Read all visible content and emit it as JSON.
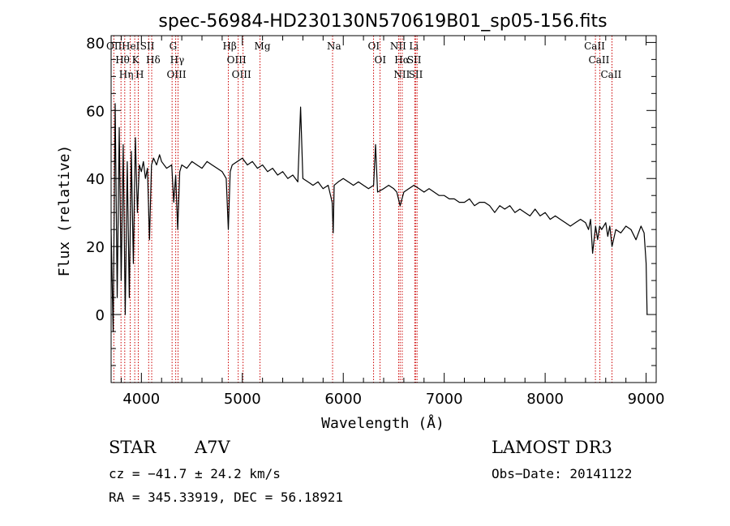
{
  "chart_data": {
    "type": "line",
    "title": "spec-56984-HD230130N570619B01_sp05-156.fits",
    "xlabel": "Wavelength (Å)",
    "ylabel": "Flux (relative)",
    "xlim": [
      3700,
      9100
    ],
    "ylim": [
      -20,
      82
    ],
    "xticks": [
      4000,
      5000,
      6000,
      7000,
      8000,
      9000
    ],
    "yticks": [
      0,
      20,
      40,
      60,
      80
    ],
    "grid": false,
    "series": [
      {
        "name": "spectrum",
        "x": [
          3700,
          3720,
          3740,
          3760,
          3780,
          3800,
          3820,
          3840,
          3860,
          3880,
          3900,
          3920,
          3940,
          3960,
          3980,
          4000,
          4020,
          4040,
          4060,
          4080,
          4100,
          4120,
          4150,
          4180,
          4200,
          4250,
          4300,
          4320,
          4340,
          4360,
          4380,
          4400,
          4450,
          4500,
          4550,
          4600,
          4650,
          4700,
          4750,
          4800,
          4840,
          4861,
          4880,
          4900,
          4950,
          5000,
          5050,
          5100,
          5150,
          5200,
          5250,
          5300,
          5350,
          5400,
          5450,
          5500,
          5550,
          5577,
          5600,
          5650,
          5700,
          5750,
          5800,
          5850,
          5890,
          5900,
          5910,
          5950,
          6000,
          6050,
          6100,
          6150,
          6200,
          6250,
          6300,
          6320,
          6340,
          6400,
          6450,
          6500,
          6530,
          6563,
          6600,
          6650,
          6700,
          6750,
          6800,
          6850,
          6900,
          6950,
          7000,
          7050,
          7100,
          7150,
          7200,
          7250,
          7300,
          7350,
          7400,
          7450,
          7500,
          7550,
          7600,
          7650,
          7700,
          7750,
          7800,
          7850,
          7900,
          7950,
          8000,
          8050,
          8100,
          8150,
          8200,
          8250,
          8300,
          8350,
          8400,
          8430,
          8450,
          8470,
          8500,
          8520,
          8540,
          8560,
          8600,
          8620,
          8640,
          8662,
          8700,
          8750,
          8800,
          8850,
          8900,
          8950,
          8980,
          9000,
          9010
        ],
        "y": [
          25,
          -5,
          62,
          5,
          55,
          10,
          50,
          0,
          45,
          5,
          48,
          15,
          52,
          30,
          44,
          42,
          45,
          40,
          43,
          22,
          44,
          46,
          44,
          47,
          45,
          43,
          44,
          33,
          41,
          25,
          42,
          44,
          43,
          45,
          44,
          43,
          45,
          44,
          43,
          42,
          40,
          25,
          42,
          44,
          45,
          46,
          44,
          45,
          43,
          44,
          42,
          43,
          41,
          42,
          40,
          41,
          39,
          61,
          40,
          39,
          38,
          39,
          37,
          38,
          33,
          24,
          38,
          39,
          40,
          39,
          38,
          39,
          38,
          37,
          38,
          50,
          36,
          37,
          38,
          37,
          36,
          32,
          36,
          37,
          38,
          37,
          36,
          37,
          36,
          35,
          35,
          34,
          34,
          33,
          33,
          34,
          32,
          33,
          33,
          32,
          30,
          32,
          31,
          32,
          30,
          31,
          30,
          29,
          31,
          29,
          30,
          28,
          29,
          28,
          27,
          26,
          27,
          28,
          27,
          25,
          28,
          18,
          26,
          22,
          26,
          25,
          27,
          23,
          26,
          20,
          25,
          24,
          26,
          25,
          22,
          26,
          24,
          15,
          0
        ]
      }
    ],
    "spectral_lines": [
      {
        "label": "OII",
        "wavelength": 3727
      },
      {
        "label": "Hθ",
        "wavelength": 3798
      },
      {
        "label": "Hη",
        "wavelength": 3835
      },
      {
        "label": "HeI",
        "wavelength": 3889
      },
      {
        "label": "K",
        "wavelength": 3934
      },
      {
        "label": "H",
        "wavelength": 3969
      },
      {
        "label": "SII",
        "wavelength": 4072
      },
      {
        "label": "Hδ",
        "wavelength": 4102
      },
      {
        "label": "G",
        "wavelength": 4304
      },
      {
        "label": "Hγ",
        "wavelength": 4340
      },
      {
        "label": "OIII",
        "wavelength": 4363
      },
      {
        "label": "Hβ",
        "wavelength": 4861
      },
      {
        "label": "OIII",
        "wavelength": 4959
      },
      {
        "label": "OIII",
        "wavelength": 5007
      },
      {
        "label": "Mg",
        "wavelength": 5175
      },
      {
        "label": "Na",
        "wavelength": 5894
      },
      {
        "label": "OI",
        "wavelength": 6300
      },
      {
        "label": "OI",
        "wavelength": 6364
      },
      {
        "label": "NII",
        "wavelength": 6548
      },
      {
        "label": "Hα",
        "wavelength": 6563
      },
      {
        "label": "NII",
        "wavelength": 6584
      },
      {
        "label": "Li",
        "wavelength": 6708
      },
      {
        "label": "SII",
        "wavelength": 6716
      },
      {
        "label": "SII",
        "wavelength": 6731
      },
      {
        "label": "CaII",
        "wavelength": 8498
      },
      {
        "label": "CaII",
        "wavelength": 8542
      },
      {
        "label": "CaII",
        "wavelength": 8662
      }
    ]
  },
  "info": {
    "class": "STAR",
    "subclass": "A7V",
    "survey": "LAMOST DR3",
    "cz": "cz = −41.7 ± 24.2 km/s",
    "obs_date": "Obs−Date: 20141122",
    "coords": "RA = 345.33919, DEC =  56.18921"
  },
  "colors": {
    "line_marker": "#cc0000",
    "spectrum": "#000000"
  }
}
